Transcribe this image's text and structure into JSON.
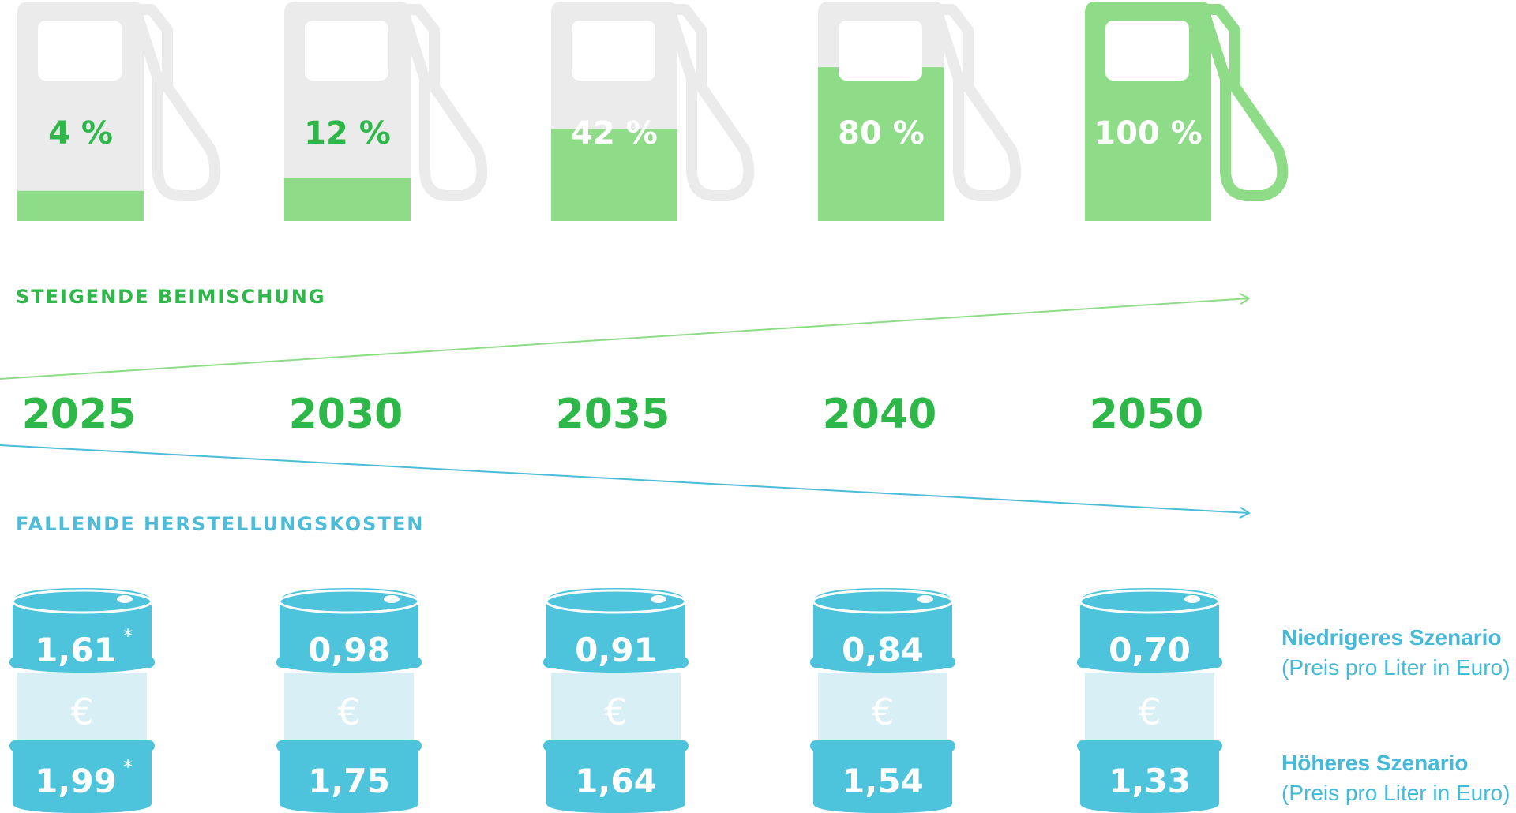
{
  "chart_data": {
    "type": "infographic",
    "categories": [
      "2025",
      "2030",
      "2035",
      "2040",
      "2050"
    ],
    "blend_share": {
      "label": "STEIGENDE BEIMISCHUNG",
      "values": [
        4,
        12,
        42,
        80,
        100
      ],
      "value_labels": [
        "4 %",
        "12 %",
        "42 %",
        "80 %",
        "100 %"
      ]
    },
    "production_cost": {
      "label": "FALLENDE HERSTELLUNGSKOSTEN",
      "currency_symbol": "€",
      "series": [
        {
          "name": "Niedrigeres Szenario",
          "note": "(Preis pro Liter in Euro)",
          "values": [
            1.61,
            0.98,
            0.91,
            0.84,
            0.7
          ],
          "value_labels": [
            "1,61",
            "0,98",
            "0,91",
            "0,84",
            "0,70"
          ]
        },
        {
          "name": "Höheres Szenario",
          "note": "(Preis pro Liter in Euro)",
          "values": [
            1.99,
            1.75,
            1.64,
            1.54,
            1.33
          ],
          "value_labels": [
            "1,99",
            "1,75",
            "1,64",
            "1,54",
            "1,33"
          ]
        }
      ],
      "footnote_marker": "*",
      "footnote_marker_categories": [
        "2025"
      ]
    },
    "colors": {
      "pump_empty": "#ebebeb",
      "pump_fill": "#8edc87",
      "pump_full": "#8edc87",
      "pct_text_dark": "#2fb84a",
      "pct_text_light": "#ffffff",
      "year_text": "#2fb84a",
      "arrow_up": "#8edc87",
      "arrow_down": "#4cbcd8",
      "barrel": "#4dc3dc",
      "barrel_band": "#d8f0f5",
      "barrel_text": "#ffffff",
      "euro": "#ffffff"
    }
  }
}
